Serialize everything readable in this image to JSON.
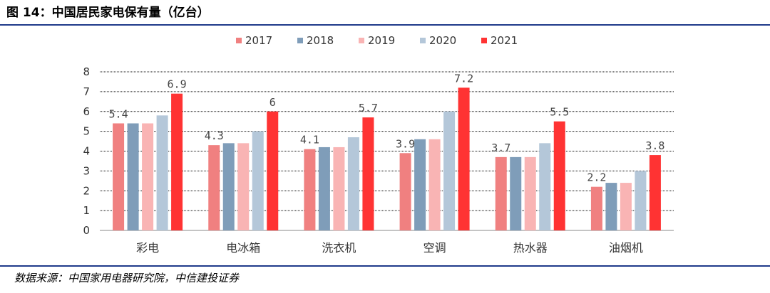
{
  "header": {
    "title": "图 14：中国居民家电保有量（亿台）"
  },
  "footer": {
    "source": "数据来源：中国家用电器研究院，中信建投证券"
  },
  "chart_data": {
    "type": "bar",
    "title": "",
    "xlabel": "",
    "ylabel": "",
    "ylim": [
      0,
      8
    ],
    "yticks": [
      0,
      1,
      2,
      3,
      4,
      5,
      6,
      7,
      8
    ],
    "grid": true,
    "legend_position": "top-center",
    "categories": [
      "彩电",
      "电冰箱",
      "洗衣机",
      "空调",
      "热水器",
      "油烟机"
    ],
    "series": [
      {
        "name": "2017",
        "color": "#f08080",
        "values": [
          5.4,
          4.3,
          4.1,
          3.9,
          3.7,
          2.2
        ]
      },
      {
        "name": "2018",
        "color": "#7f9db9",
        "values": [
          5.4,
          4.4,
          4.2,
          4.6,
          3.7,
          2.4
        ]
      },
      {
        "name": "2019",
        "color": "#f9b4b4",
        "values": [
          5.4,
          4.4,
          4.2,
          4.6,
          3.7,
          2.4
        ]
      },
      {
        "name": "2020",
        "color": "#b4c7d9",
        "values": [
          5.8,
          5.0,
          4.7,
          6.0,
          4.4,
          3.0
        ]
      },
      {
        "name": "2021",
        "color": "#ff3333",
        "values": [
          6.9,
          6.0,
          5.7,
          7.2,
          5.5,
          3.8
        ]
      }
    ],
    "data_labels": [
      {
        "category": "彩电",
        "series": "2017",
        "text": "5.4"
      },
      {
        "category": "彩电",
        "series": "2021",
        "text": "6.9"
      },
      {
        "category": "电冰箱",
        "series": "2017",
        "text": "4.3"
      },
      {
        "category": "电冰箱",
        "series": "2021",
        "text": "6"
      },
      {
        "category": "洗衣机",
        "series": "2017",
        "text": "4.1"
      },
      {
        "category": "洗衣机",
        "series": "2021",
        "text": "5.7"
      },
      {
        "category": "空调",
        "series": "2017",
        "text": "3.9"
      },
      {
        "category": "空调",
        "series": "2021",
        "text": "7.2"
      },
      {
        "category": "热水器",
        "series": "2017",
        "text": "3.7"
      },
      {
        "category": "热水器",
        "series": "2021",
        "text": "5.5"
      },
      {
        "category": "油烟机",
        "series": "2017",
        "text": "2.2"
      },
      {
        "category": "油烟机",
        "series": "2021",
        "text": "3.8"
      }
    ]
  }
}
